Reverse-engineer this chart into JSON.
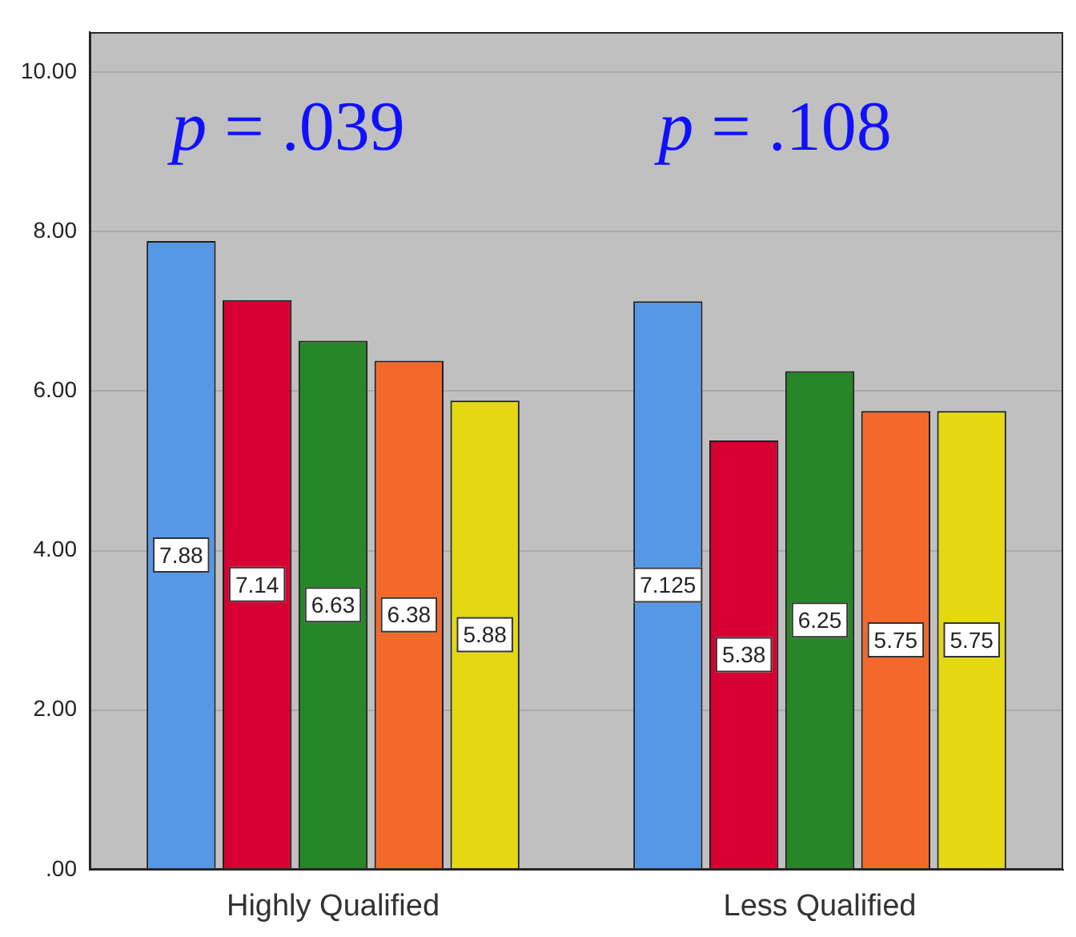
{
  "chart_data": {
    "type": "bar",
    "categories": [
      "Highly Qualified",
      "Less Qualified"
    ],
    "series": [
      {
        "color": "#5698e5",
        "values": [
          7.88,
          7.125
        ]
      },
      {
        "color": "#d80032",
        "values": [
          7.14,
          5.38
        ]
      },
      {
        "color": "#278627",
        "values": [
          6.63,
          6.25
        ]
      },
      {
        "color": "#f2692b",
        "values": [
          6.38,
          5.75
        ]
      },
      {
        "color": "#e3d812",
        "values": [
          5.88,
          5.75
        ]
      }
    ],
    "ylim": [
      0,
      10.5
    ],
    "yticks": [
      {
        "value": 0,
        "label": ".00"
      },
      {
        "value": 2,
        "label": "2.00"
      },
      {
        "value": 4,
        "label": "4.00"
      },
      {
        "value": 6,
        "label": "6.00"
      },
      {
        "value": 8,
        "label": "8.00"
      },
      {
        "value": 10,
        "label": "10.00"
      }
    ],
    "grid": "y",
    "data_labels": true,
    "annotations": [
      "p = .039",
      "p = .108"
    ]
  }
}
